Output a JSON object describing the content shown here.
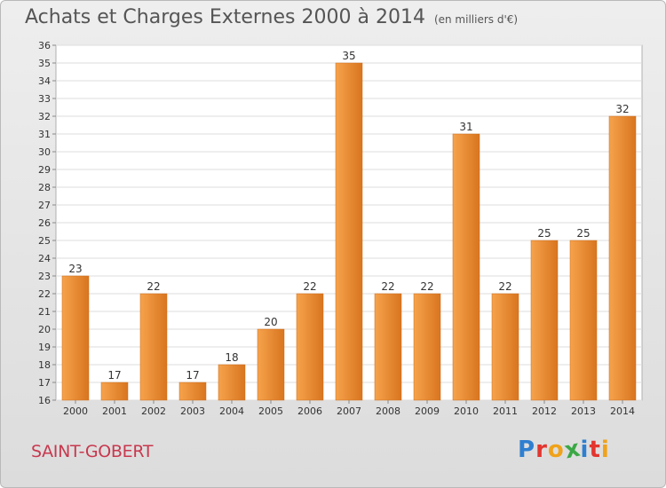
{
  "header": {
    "title": "Achats et Charges Externes 2000 à 2014",
    "subtitle": "(en milliers d'€)"
  },
  "footer": {
    "commune": "SAINT-GOBERT",
    "brand_letters": [
      "P",
      "r",
      "o",
      "x",
      "i",
      "t",
      "i"
    ],
    "brand_colors": [
      "#2f7fd0",
      "#e2362f",
      "#f0a21a",
      "#3aa845",
      "#2f7fd0",
      "#e2362f",
      "#f0a21a"
    ]
  },
  "chart_data": {
    "type": "bar",
    "title": "Achats et Charges Externes 2000 à 2014",
    "subtitle": "(en milliers d'€)",
    "categories": [
      "2000",
      "2001",
      "2002",
      "2003",
      "2004",
      "2005",
      "2006",
      "2007",
      "2008",
      "2009",
      "2010",
      "2011",
      "2012",
      "2013",
      "2014"
    ],
    "values": [
      23,
      17,
      22,
      17,
      18,
      20,
      22,
      35,
      22,
      22,
      31,
      22,
      25,
      25,
      32
    ],
    "data_labels": [
      "23",
      "17",
      "22",
      "17",
      "18",
      "20",
      "22",
      "35",
      "22",
      "22",
      "31",
      "22",
      "25",
      "25",
      "32"
    ],
    "xlabel": "",
    "ylabel": "",
    "ylim": [
      16,
      36
    ],
    "yticks": [
      "16",
      "17",
      "18",
      "19",
      "20",
      "21",
      "22",
      "23",
      "24",
      "25",
      "26",
      "27",
      "28",
      "29",
      "30",
      "31",
      "32",
      "33",
      "34",
      "35",
      "36"
    ],
    "grid": true,
    "bar_color_light": "#f6a24c",
    "bar_color_dark": "#d9751f"
  }
}
